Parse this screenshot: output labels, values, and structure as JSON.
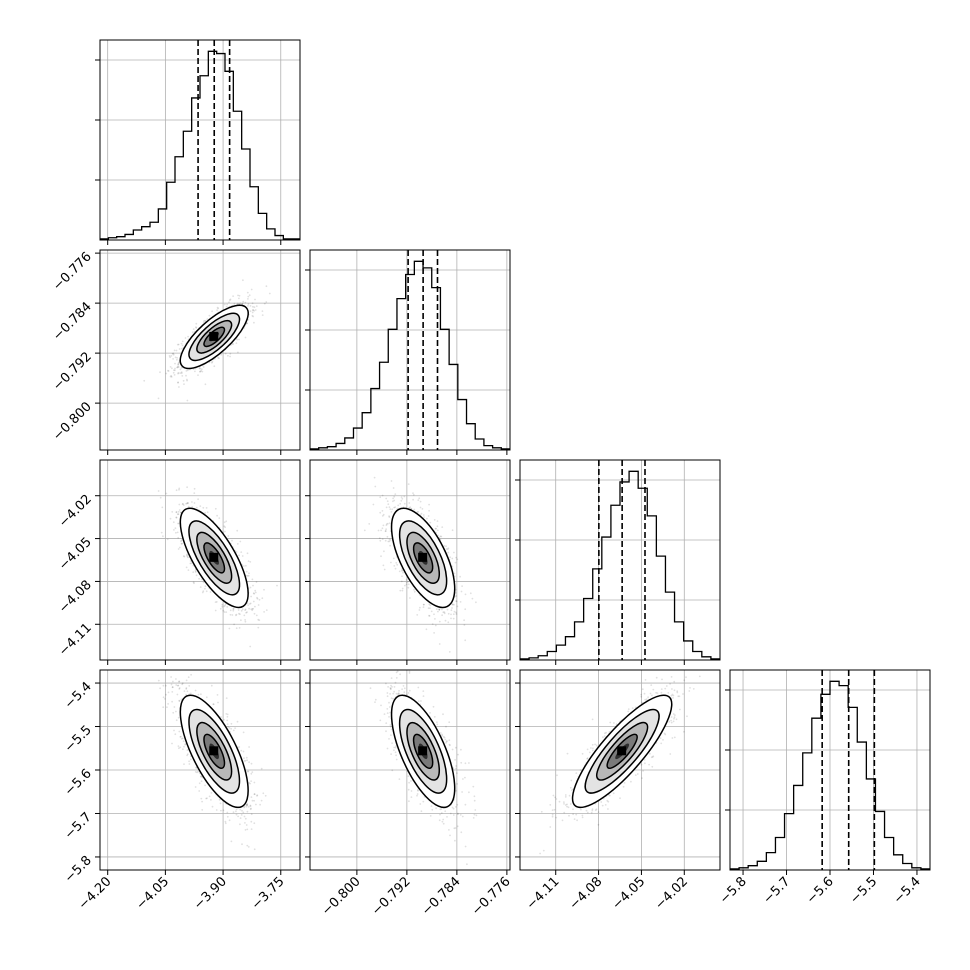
{
  "chart_data": {
    "type": "corner",
    "parameters": [
      {
        "range": [
          -4.22,
          -3.7
        ],
        "ticks": [
          -4.2,
          -4.05,
          -3.9,
          -3.75
        ],
        "tick_labels": [
          "−4.20",
          "−4.05",
          "−3.90",
          "−3.75"
        ],
        "quantiles": [
          -3.965,
          -3.923,
          -3.883
        ],
        "hist_values": [
          1,
          2,
          3,
          5,
          9,
          12,
          16,
          28,
          52,
          75,
          98,
          128,
          148,
          170,
          168,
          152,
          116,
          82,
          48,
          24,
          10,
          4,
          1,
          1
        ]
      },
      {
        "range": [
          -0.8075,
          -0.7755
        ],
        "ticks": [
          -0.8,
          -0.792,
          -0.784,
          -0.776
        ],
        "tick_labels": [
          "−0.800",
          "−0.792",
          "−0.784",
          "−0.776"
        ],
        "quantiles": [
          -0.7918,
          -0.7894,
          -0.7871
        ],
        "hist_values": [
          1,
          2,
          3,
          6,
          11,
          20,
          34,
          56,
          80,
          110,
          138,
          160,
          172,
          166,
          148,
          110,
          78,
          46,
          24,
          10,
          4,
          2,
          1
        ]
      },
      {
        "range": [
          -4.135,
          -3.995
        ],
        "ticks": [
          -4.11,
          -4.08,
          -4.05,
          -4.02
        ],
        "tick_labels": [
          "−4.11",
          "−4.08",
          "−4.05",
          "−4.02"
        ],
        "quantiles": [
          -4.0798,
          -4.0635,
          -4.0475
        ],
        "hist_values": [
          1,
          2,
          4,
          8,
          14,
          22,
          36,
          58,
          86,
          116,
          146,
          168,
          178,
          162,
          136,
          98,
          64,
          36,
          18,
          8,
          3,
          1
        ]
      },
      {
        "range": [
          -5.83,
          -5.37
        ],
        "ticks": [
          -5.8,
          -5.7,
          -5.6,
          -5.5,
          -5.4
        ],
        "tick_labels": [
          "−5.8",
          "−5.7",
          "−5.6",
          "−5.5",
          "−5.4"
        ],
        "quantiles": [
          -5.618,
          -5.557,
          -5.498
        ],
        "hist_values": [
          1,
          2,
          4,
          8,
          16,
          30,
          52,
          78,
          108,
          140,
          162,
          174,
          170,
          150,
          118,
          84,
          54,
          30,
          14,
          6,
          2,
          1
        ]
      }
    ],
    "pairs": [
      {
        "x": 0,
        "y": 1,
        "rho": 0.75
      },
      {
        "x": 0,
        "y": 2,
        "rho": -0.72
      },
      {
        "x": 1,
        "y": 2,
        "rho": -0.62
      },
      {
        "x": 0,
        "y": 3,
        "rho": -0.7
      },
      {
        "x": 1,
        "y": 3,
        "rho": -0.66
      },
      {
        "x": 2,
        "y": 3,
        "rho": 0.84
      }
    ],
    "grid": true,
    "contour_levels": 4
  }
}
